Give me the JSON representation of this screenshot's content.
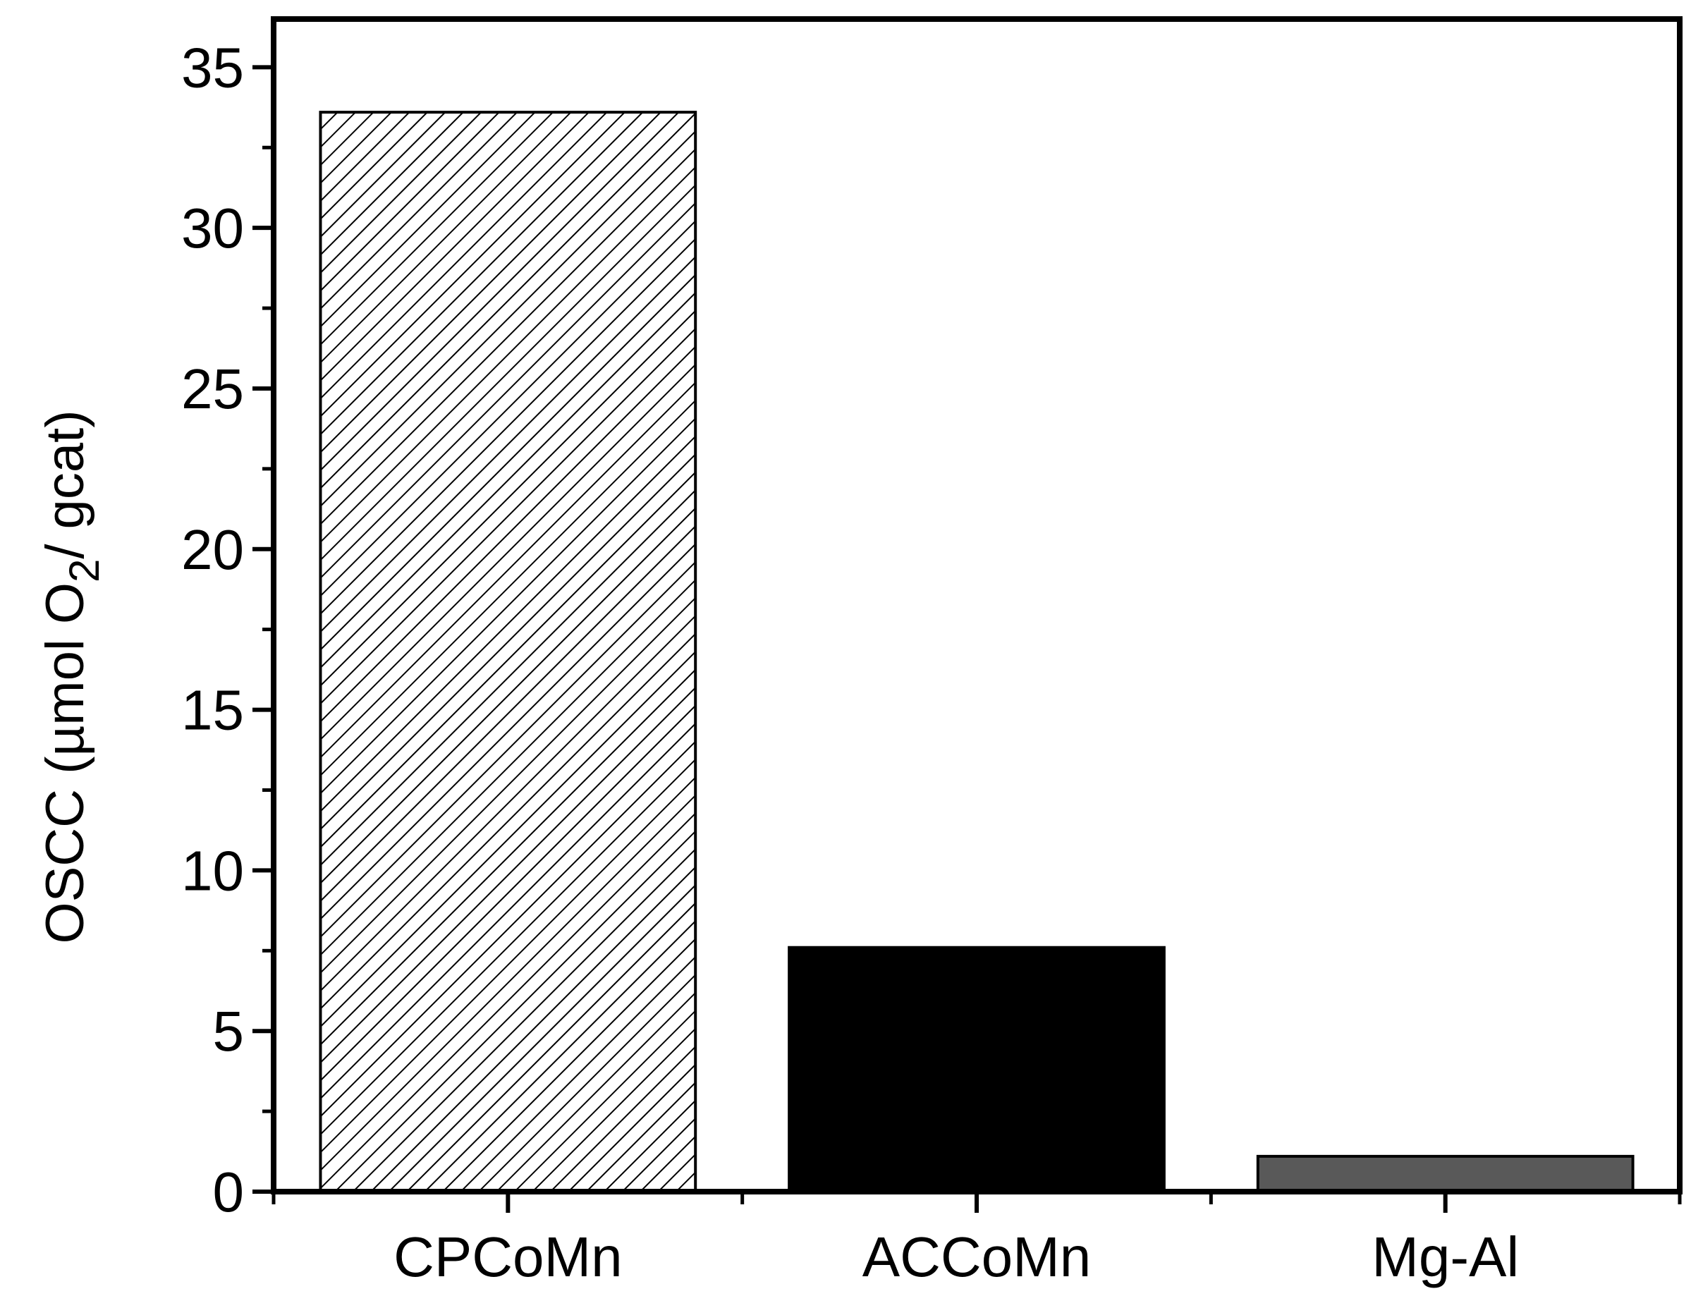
{
  "chart_data": {
    "type": "bar",
    "categories": [
      "CPCoMn",
      "ACCoMn",
      "Mg-Al"
    ],
    "values": [
      33.6,
      7.6,
      1.1
    ],
    "bar_fills": [
      "hatched",
      "#000000",
      "#595959"
    ],
    "ylabel": {
      "prefix": "OSCC (µmol O",
      "subscript": "2",
      "suffix": "/ gcat)"
    },
    "xlabel": "",
    "ylim": [
      0,
      36.5
    ],
    "yticks": [
      0,
      5,
      10,
      15,
      20,
      25,
      30,
      35
    ],
    "yminor_step": 2.5,
    "grid": false,
    "legend": "none"
  }
}
